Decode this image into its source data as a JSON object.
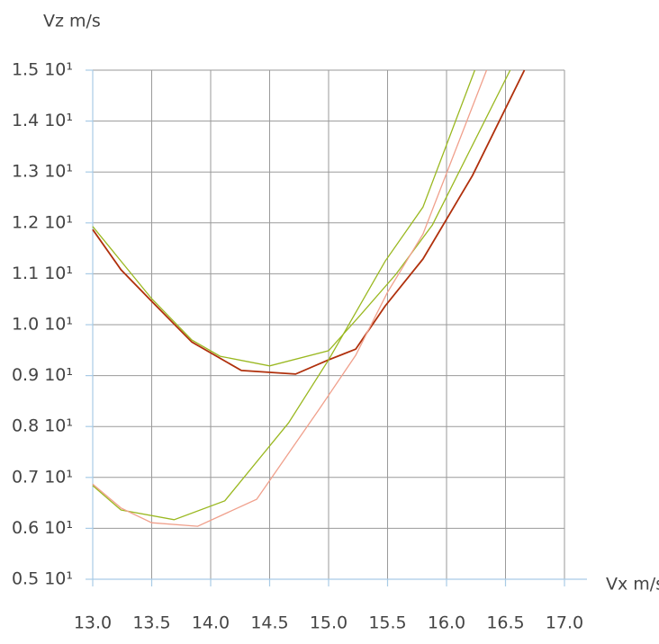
{
  "chart_data": {
    "type": "line",
    "y_label": "Vz m/s",
    "x_label": "Vx m/s",
    "xlim": [
      13,
      17
    ],
    "xticks": [
      {
        "value": 13,
        "label": "13.0"
      },
      {
        "value": 13.5,
        "label": "13.5"
      },
      {
        "value": 14,
        "label": "14.0"
      },
      {
        "value": 14.5,
        "label": "14.5"
      },
      {
        "value": 15,
        "label": "15.0"
      },
      {
        "value": 15.5,
        "label": "15.5"
      },
      {
        "value": 16,
        "label": "16.0"
      },
      {
        "value": 16.5,
        "label": "16.5"
      },
      {
        "value": 17,
        "label": "17.0"
      }
    ],
    "ylim": [
      5,
      15
    ],
    "yticks": [
      {
        "value": 5,
        "label": "0.5 10¹"
      },
      {
        "value": 6,
        "label": "0.6 10¹"
      },
      {
        "value": 7,
        "label": "0.7 10¹"
      },
      {
        "value": 8,
        "label": "0.8 10¹"
      },
      {
        "value": 9,
        "label": "0.9 10¹"
      },
      {
        "value": 10,
        "label": "1.0 10¹"
      },
      {
        "value": 11,
        "label": "1.1 10¹"
      },
      {
        "value": 12,
        "label": "1.2 10¹"
      },
      {
        "value": 13,
        "label": "1.3 10¹"
      },
      {
        "value": 14,
        "label": "1.4 10¹"
      },
      {
        "value": 15,
        "label": "1.5 10¹"
      }
    ],
    "grid": true,
    "series": [
      {
        "color": "#b0300c",
        "x": [
          13.0,
          13.24,
          13.5,
          13.84,
          14.26,
          14.72,
          15.0,
          15.23,
          15.48,
          15.8,
          16.22,
          16.66
        ],
        "values": [
          11.87,
          11.08,
          10.46,
          9.66,
          9.1,
          9.03,
          9.31,
          9.52,
          10.37,
          11.29,
          12.93,
          15.0
        ]
      },
      {
        "color": "#9ab820",
        "x": [
          13.0,
          13.5,
          13.84,
          14.08,
          14.5,
          15.0,
          15.27,
          15.57,
          15.88,
          16.54
        ],
        "values": [
          11.93,
          10.51,
          9.7,
          9.38,
          9.19,
          9.49,
          10.19,
          10.99,
          11.96,
          15.0
        ]
      },
      {
        "color": "#9ab820",
        "x": [
          13.0,
          13.24,
          13.69,
          14.12,
          14.66,
          15.0,
          15.48,
          15.8,
          16.24
        ],
        "values": [
          6.84,
          6.36,
          6.17,
          6.54,
          8.07,
          9.31,
          11.25,
          12.31,
          15.0
        ]
      },
      {
        "color": "#f0a08c",
        "x": [
          13.0,
          13.24,
          13.5,
          13.89,
          14.39,
          14.92,
          15.23,
          15.5,
          15.8,
          16.34
        ],
        "values": [
          6.87,
          6.4,
          6.11,
          6.04,
          6.57,
          8.34,
          9.4,
          10.64,
          11.78,
          15.0
        ]
      }
    ]
  }
}
